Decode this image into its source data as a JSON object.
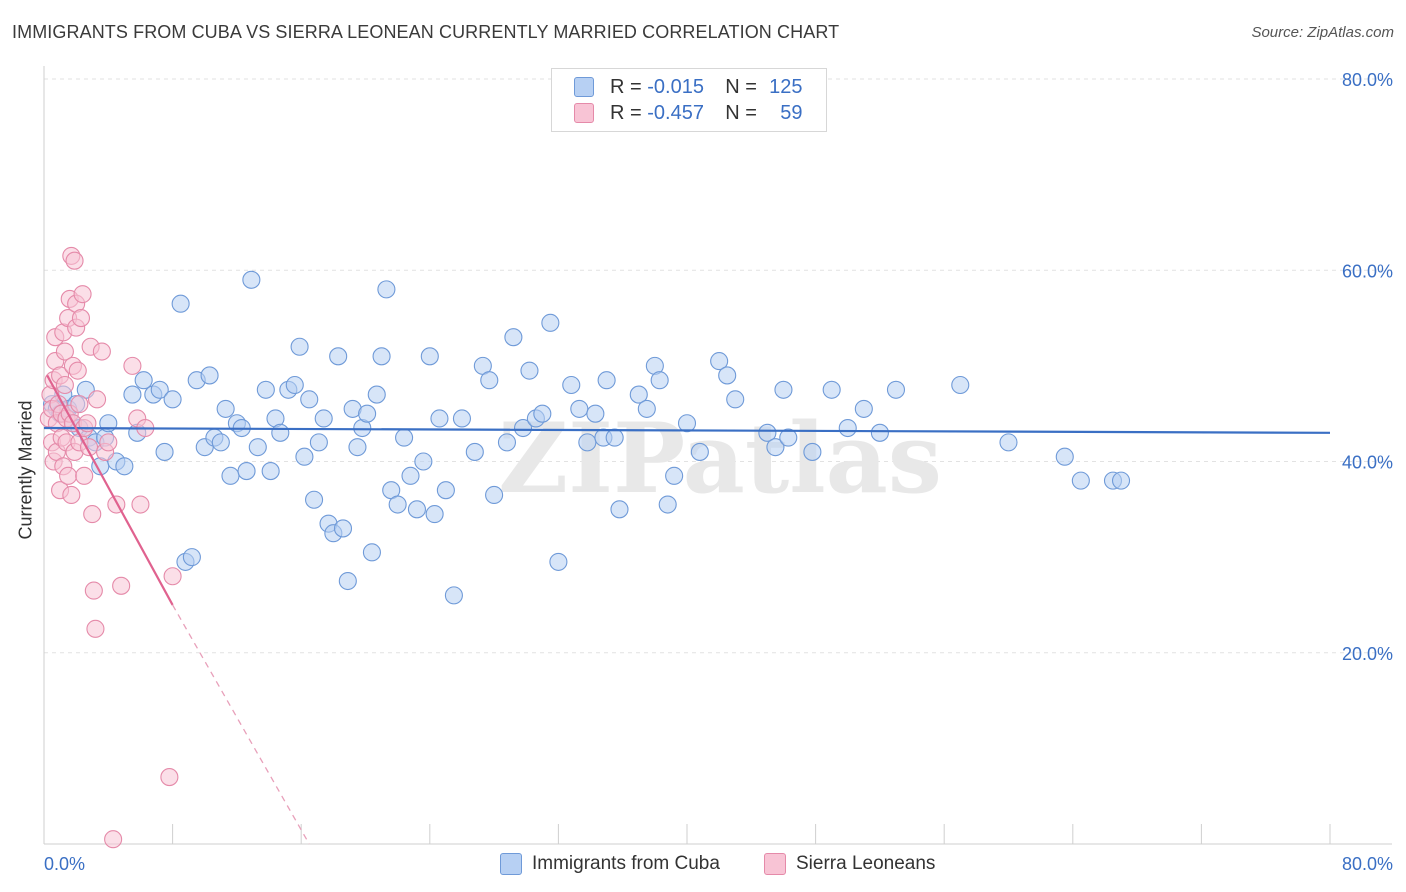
{
  "title": "IMMIGRANTS FROM CUBA VS SIERRA LEONEAN CURRENTLY MARRIED CORRELATION CHART",
  "source": "Source: ZipAtlas.com",
  "watermark": "ZIPatlas",
  "legend": {
    "r_label": "R =",
    "n_label": "N =",
    "rows": [
      {
        "r": "-0.015",
        "n": "125",
        "color": "#b7d0f3",
        "border": "#6f9ad8"
      },
      {
        "r": "-0.457",
        "n": "59",
        "color": "#f8c4d5",
        "border": "#e58aa9"
      }
    ]
  },
  "chart_data": {
    "type": "scatter",
    "xlabel": "",
    "ylabel": "Currently Married",
    "xlim": [
      0,
      80
    ],
    "ylim": [
      0,
      80
    ],
    "x_tick_labels": [
      "0.0%",
      "80.0%"
    ],
    "y_tick_labels": [
      {
        "value": 20,
        "label": "20.0%"
      },
      {
        "value": 40,
        "label": "40.0%"
      },
      {
        "value": 60,
        "label": "60.0%"
      },
      {
        "value": 80,
        "label": "80.0%"
      }
    ],
    "grid": "horizontal dashed",
    "legend_position": "top-center and bottom",
    "series": [
      {
        "name": "Immigrants from Cuba",
        "color": "#6f9ad8",
        "fill": "#b7d0f3",
        "trend": {
          "x": [
            0,
            80
          ],
          "y": [
            43.5,
            43.0
          ]
        },
        "points": [
          [
            0.5,
            46.0
          ],
          [
            0.8,
            45.5
          ],
          [
            1.0,
            45.0
          ],
          [
            1.2,
            47.0
          ],
          [
            1.5,
            45.5
          ],
          [
            1.8,
            44.0
          ],
          [
            2.0,
            46.0
          ],
          [
            2.2,
            43.5
          ],
          [
            2.6,
            47.5
          ],
          [
            2.8,
            42.5
          ],
          [
            3.2,
            42.0
          ],
          [
            3.5,
            39.5
          ],
          [
            3.8,
            42.5
          ],
          [
            4.0,
            44.0
          ],
          [
            4.5,
            40.0
          ],
          [
            5.0,
            39.5
          ],
          [
            5.5,
            47.0
          ],
          [
            5.8,
            43.0
          ],
          [
            6.2,
            48.5
          ],
          [
            6.8,
            47.0
          ],
          [
            7.2,
            47.5
          ],
          [
            7.5,
            41.0
          ],
          [
            8.0,
            46.5
          ],
          [
            8.5,
            56.5
          ],
          [
            8.8,
            29.5
          ],
          [
            9.2,
            30.0
          ],
          [
            9.5,
            48.5
          ],
          [
            10.0,
            41.5
          ],
          [
            10.3,
            49.0
          ],
          [
            10.6,
            42.5
          ],
          [
            11.0,
            42.0
          ],
          [
            11.3,
            45.5
          ],
          [
            11.6,
            38.5
          ],
          [
            12.0,
            44.0
          ],
          [
            12.3,
            43.5
          ],
          [
            12.6,
            39.0
          ],
          [
            12.9,
            59.0
          ],
          [
            13.3,
            41.5
          ],
          [
            13.8,
            47.5
          ],
          [
            14.1,
            39.0
          ],
          [
            14.4,
            44.5
          ],
          [
            14.7,
            43.0
          ],
          [
            15.2,
            47.5
          ],
          [
            15.6,
            48.0
          ],
          [
            15.9,
            52.0
          ],
          [
            16.2,
            40.5
          ],
          [
            16.5,
            46.5
          ],
          [
            16.8,
            36.0
          ],
          [
            17.1,
            42.0
          ],
          [
            17.4,
            44.5
          ],
          [
            17.7,
            33.5
          ],
          [
            18.0,
            32.5
          ],
          [
            18.3,
            51.0
          ],
          [
            18.6,
            33.0
          ],
          [
            18.9,
            27.5
          ],
          [
            19.2,
            45.5
          ],
          [
            19.5,
            41.5
          ],
          [
            19.8,
            43.5
          ],
          [
            20.1,
            45.0
          ],
          [
            20.4,
            30.5
          ],
          [
            20.7,
            47.0
          ],
          [
            21.0,
            51.0
          ],
          [
            21.3,
            58.0
          ],
          [
            21.6,
            37.0
          ],
          [
            22.0,
            35.5
          ],
          [
            22.4,
            42.5
          ],
          [
            22.8,
            38.5
          ],
          [
            23.2,
            35.0
          ],
          [
            23.6,
            40.0
          ],
          [
            24.0,
            51.0
          ],
          [
            24.3,
            34.5
          ],
          [
            24.6,
            44.5
          ],
          [
            25.0,
            37.0
          ],
          [
            25.5,
            26.0
          ],
          [
            26.0,
            44.5
          ],
          [
            26.8,
            41.0
          ],
          [
            27.3,
            50.0
          ],
          [
            27.7,
            48.5
          ],
          [
            28.0,
            36.5
          ],
          [
            28.8,
            42.0
          ],
          [
            29.2,
            53.0
          ],
          [
            29.8,
            43.5
          ],
          [
            30.2,
            49.5
          ],
          [
            30.6,
            44.5
          ],
          [
            31.0,
            45.0
          ],
          [
            31.5,
            54.5
          ],
          [
            32.0,
            29.5
          ],
          [
            32.8,
            48.0
          ],
          [
            33.3,
            45.5
          ],
          [
            33.8,
            42.0
          ],
          [
            34.3,
            45.0
          ],
          [
            34.8,
            42.5
          ],
          [
            35.0,
            48.5
          ],
          [
            35.5,
            42.5
          ],
          [
            35.8,
            35.0
          ],
          [
            37.0,
            47.0
          ],
          [
            37.5,
            45.5
          ],
          [
            38.0,
            50.0
          ],
          [
            38.3,
            48.5
          ],
          [
            38.8,
            35.5
          ],
          [
            39.2,
            38.5
          ],
          [
            40.0,
            44.0
          ],
          [
            40.8,
            41.0
          ],
          [
            42.0,
            50.5
          ],
          [
            42.5,
            49.0
          ],
          [
            43.0,
            46.5
          ],
          [
            45.0,
            43.0
          ],
          [
            45.5,
            41.5
          ],
          [
            46.0,
            47.5
          ],
          [
            46.3,
            42.5
          ],
          [
            47.8,
            41.0
          ],
          [
            49.0,
            47.5
          ],
          [
            50.0,
            43.5
          ],
          [
            51.0,
            45.5
          ],
          [
            52.0,
            43.0
          ],
          [
            53.0,
            47.5
          ],
          [
            57.0,
            48.0
          ],
          [
            60.0,
            42.0
          ],
          [
            63.5,
            40.5
          ],
          [
            64.5,
            38.0
          ],
          [
            66.5,
            38.0
          ],
          [
            67.0,
            38.0
          ]
        ]
      },
      {
        "name": "Sierra Leoneans",
        "color": "#e58aa9",
        "fill": "#f8c4d5",
        "trend": {
          "x": [
            0.2,
            8.0
          ],
          "y": [
            49.0,
            25.0
          ]
        },
        "trend_extension": {
          "x": [
            8.0,
            16.5
          ],
          "y": [
            25.0,
            0.0
          ]
        },
        "points": [
          [
            0.3,
            44.5
          ],
          [
            0.4,
            47.0
          ],
          [
            0.5,
            45.5
          ],
          [
            0.5,
            42.0
          ],
          [
            0.6,
            40.0
          ],
          [
            0.6,
            48.5
          ],
          [
            0.7,
            50.5
          ],
          [
            0.7,
            53.0
          ],
          [
            0.8,
            44.0
          ],
          [
            0.8,
            41.0
          ],
          [
            0.9,
            46.0
          ],
          [
            1.0,
            37.0
          ],
          [
            1.0,
            49.0
          ],
          [
            1.1,
            42.5
          ],
          [
            1.1,
            45.0
          ],
          [
            1.2,
            53.5
          ],
          [
            1.2,
            39.5
          ],
          [
            1.3,
            51.5
          ],
          [
            1.3,
            48.0
          ],
          [
            1.4,
            44.5
          ],
          [
            1.4,
            42.0
          ],
          [
            1.5,
            38.5
          ],
          [
            1.5,
            55.0
          ],
          [
            1.6,
            57.0
          ],
          [
            1.6,
            45.0
          ],
          [
            1.7,
            36.5
          ],
          [
            1.7,
            61.5
          ],
          [
            1.8,
            50.0
          ],
          [
            1.8,
            44.0
          ],
          [
            1.9,
            61.0
          ],
          [
            1.9,
            41.0
          ],
          [
            2.0,
            56.5
          ],
          [
            2.0,
            54.0
          ],
          [
            2.1,
            49.5
          ],
          [
            2.2,
            42.0
          ],
          [
            2.2,
            46.0
          ],
          [
            2.3,
            55.0
          ],
          [
            2.4,
            57.5
          ],
          [
            2.5,
            43.5
          ],
          [
            2.5,
            38.5
          ],
          [
            2.7,
            44.0
          ],
          [
            2.8,
            41.5
          ],
          [
            2.9,
            52.0
          ],
          [
            3.0,
            34.5
          ],
          [
            3.1,
            26.5
          ],
          [
            3.2,
            22.5
          ],
          [
            3.3,
            46.5
          ],
          [
            3.6,
            51.5
          ],
          [
            3.8,
            41.0
          ],
          [
            4.0,
            42.0
          ],
          [
            4.3,
            0.5
          ],
          [
            4.5,
            35.5
          ],
          [
            4.8,
            27.0
          ],
          [
            5.5,
            50.0
          ],
          [
            5.8,
            44.5
          ],
          [
            6.0,
            35.5
          ],
          [
            6.3,
            43.5
          ],
          [
            7.8,
            7.0
          ],
          [
            8.0,
            28.0
          ]
        ]
      }
    ]
  }
}
